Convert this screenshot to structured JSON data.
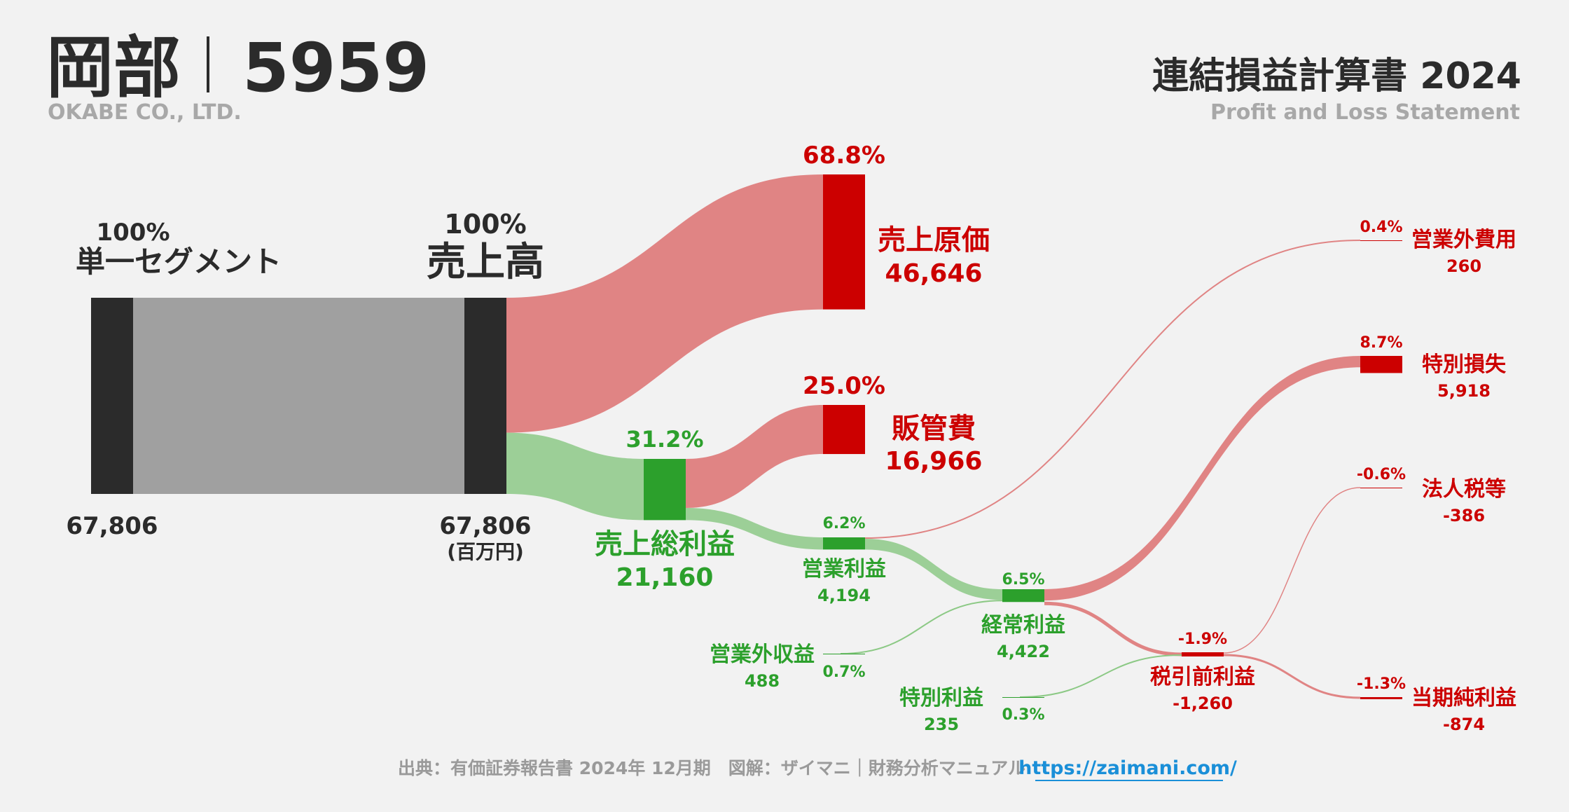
{
  "header": {
    "company_jp": "岡部",
    "ticker": "5959",
    "company_en": "OKABE CO., LTD.",
    "title_jp": "連結損益計算書 2024",
    "title_en": "Profit and Loss Statement"
  },
  "footer": {
    "source": "出典：有価証券報告書 2024年 12月期　図解：ザイマニ｜財務分析マニュアル",
    "url": "https://zaimani.com/"
  },
  "colors": {
    "profit": "#2ca02c",
    "loss": "#cc0000",
    "neutral": "#2b2b2b",
    "revenue_band": "#a0a0a0",
    "profit_band": "#9ccf97",
    "loss_band": "#e08484"
  },
  "chart_data": {
    "type": "sankey",
    "unit": "(百万円)",
    "nodes": [
      {
        "id": "segment",
        "label": "単一セグメント",
        "value": 67806,
        "value_label": "67,806",
        "pct": "100%"
      },
      {
        "id": "revenue",
        "label": "売上高",
        "value": 67806,
        "value_label": "67,806",
        "pct": "100%"
      },
      {
        "id": "cogs",
        "label": "売上原価",
        "value": 46646,
        "value_label": "46,646",
        "pct": "68.8%"
      },
      {
        "id": "gross",
        "label": "売上総利益",
        "value": 21160,
        "value_label": "21,160",
        "pct": "31.2%"
      },
      {
        "id": "sga",
        "label": "販管費",
        "value": 16966,
        "value_label": "16,966",
        "pct": "25.0%"
      },
      {
        "id": "op",
        "label": "営業利益",
        "value": 4194,
        "value_label": "4,194",
        "pct": "6.2%"
      },
      {
        "id": "nonop_inc",
        "label": "営業外収益",
        "value": 488,
        "value_label": "488",
        "pct": "0.7%"
      },
      {
        "id": "nonop_exp",
        "label": "営業外費用",
        "value": 260,
        "value_label": "260",
        "pct": "0.4%"
      },
      {
        "id": "ordinary",
        "label": "経常利益",
        "value": 4422,
        "value_label": "4,422",
        "pct": "6.5%"
      },
      {
        "id": "ext_gain",
        "label": "特別利益",
        "value": 235,
        "value_label": "235",
        "pct": "0.3%"
      },
      {
        "id": "ext_loss",
        "label": "特別損失",
        "value": 5918,
        "value_label": "5,918",
        "pct": "8.7%"
      },
      {
        "id": "pretax",
        "label": "税引前利益",
        "value": -1260,
        "value_label": "-1,260",
        "pct": "-1.9%"
      },
      {
        "id": "tax",
        "label": "法人税等",
        "value": -386,
        "value_label": "-386",
        "pct": "-0.6%"
      },
      {
        "id": "net",
        "label": "当期純利益",
        "value": -874,
        "value_label": "-874",
        "pct": "-1.3%"
      }
    ],
    "links": [
      {
        "source": "segment",
        "target": "revenue",
        "value": 67806
      },
      {
        "source": "revenue",
        "target": "cogs",
        "value": 46646
      },
      {
        "source": "revenue",
        "target": "gross",
        "value": 21160
      },
      {
        "source": "gross",
        "target": "sga",
        "value": 16966
      },
      {
        "source": "gross",
        "target": "op",
        "value": 4194
      },
      {
        "source": "op",
        "target": "nonop_exp",
        "value": 260
      },
      {
        "source": "op",
        "target": "ordinary",
        "value": 3934
      },
      {
        "source": "nonop_inc",
        "target": "ordinary",
        "value": 488
      },
      {
        "source": "ordinary",
        "target": "ext_loss",
        "value": 4422
      },
      {
        "source": "ext_gain",
        "target": "pretax",
        "value": 235
      },
      {
        "source": "pretax",
        "target": "tax",
        "value": -386
      },
      {
        "source": "pretax",
        "target": "net",
        "value": -874
      }
    ]
  }
}
